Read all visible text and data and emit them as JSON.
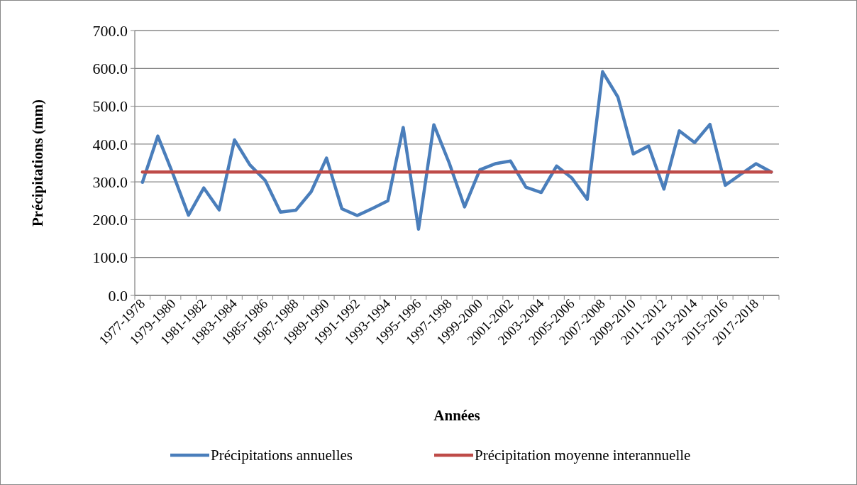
{
  "chart_data": {
    "type": "line",
    "xlabel": "Années",
    "ylabel": "Précipitations (mm)",
    "categories": [
      "1977-1978",
      null,
      "1979-1980",
      null,
      "1981-1982",
      null,
      "1983-1984",
      null,
      "1985-1986",
      null,
      "1987-1988",
      null,
      "1989-1990",
      null,
      "1991-1992",
      null,
      "1993-1994",
      null,
      "1995-1996",
      null,
      "1997-1998",
      null,
      "1999-2000",
      null,
      "2001-2002",
      null,
      "2003-2004",
      null,
      "2005-2006",
      null,
      "2007-2008",
      null,
      "2009-2010",
      null,
      "2011-2012",
      null,
      "2013-2014",
      null,
      "2015-2016",
      null,
      "2017-2018",
      null
    ],
    "series": [
      {
        "name": "Précipitations annuelles",
        "color": "#4a7ebb",
        "values": [
          299,
          421,
          320,
          212,
          284,
          226,
          411,
          345,
          304,
          220,
          225,
          274,
          363,
          229,
          211,
          230,
          250,
          444,
          175,
          451,
          350,
          234,
          332,
          348,
          355,
          286,
          272,
          342,
          310,
          254,
          591,
          524,
          374,
          395,
          281,
          435,
          404,
          452,
          291,
          320,
          348,
          326
        ]
      },
      {
        "name": "Précipitation moyenne interannuelle",
        "color": "#be4b48",
        "values": [
          326,
          326,
          326,
          326,
          326,
          326,
          326,
          326,
          326,
          326,
          326,
          326,
          326,
          326,
          326,
          326,
          326,
          326,
          326,
          326,
          326,
          326,
          326,
          326,
          326,
          326,
          326,
          326,
          326,
          326,
          326,
          326,
          326,
          326,
          326,
          326,
          326,
          326,
          326,
          326,
          326,
          326
        ]
      }
    ],
    "ylim": [
      0,
      700
    ],
    "yticks": [
      {
        "value": 0,
        "label": "0.0"
      },
      {
        "value": 100,
        "label": "100.0"
      },
      {
        "value": 200,
        "label": "200.0"
      },
      {
        "value": 300,
        "label": "300.0"
      },
      {
        "value": 400,
        "label": "400.0"
      },
      {
        "value": 500,
        "label": "500.0"
      },
      {
        "value": 600,
        "label": "600.0"
      },
      {
        "value": 700,
        "label": "700.0"
      }
    ],
    "grid": "y",
    "legend": "bottom",
    "marker": "none",
    "line_style": "solid"
  }
}
